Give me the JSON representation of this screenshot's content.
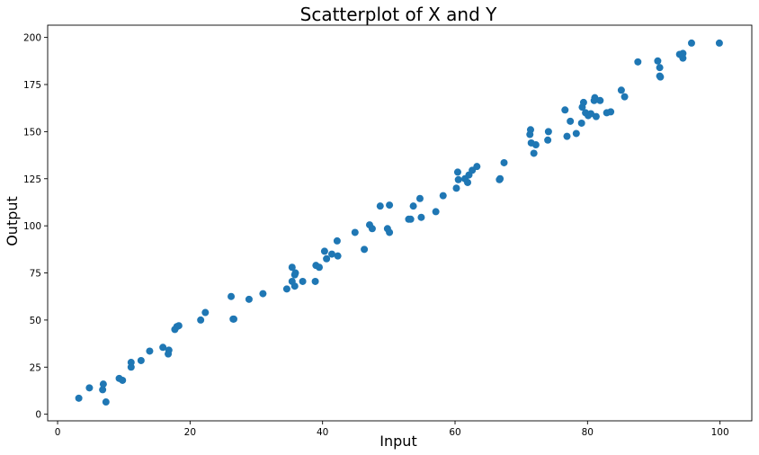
{
  "chart_data": {
    "type": "scatter",
    "title": "Scatterplot of X and Y",
    "xlabel": "Input",
    "ylabel": "Output",
    "xlim": [
      -1.5,
      104.8
    ],
    "ylim": [
      -3.5,
      206.5
    ],
    "xticks": [
      0,
      20,
      40,
      60,
      80,
      100
    ],
    "yticks": [
      0,
      25,
      50,
      75,
      100,
      125,
      150,
      175,
      200
    ],
    "grid": false,
    "color": "#1f77b4",
    "points": [
      [
        3.2,
        8.5
      ],
      [
        4.8,
        14
      ],
      [
        6.8,
        13
      ],
      [
        6.9,
        16
      ],
      [
        7.3,
        6.5
      ],
      [
        9.3,
        19
      ],
      [
        9.8,
        18
      ],
      [
        11.1,
        25
      ],
      [
        11.1,
        27.5
      ],
      [
        12.6,
        28.5
      ],
      [
        13.9,
        33.5
      ],
      [
        15.9,
        35.5
      ],
      [
        16.7,
        32
      ],
      [
        16.8,
        34
      ],
      [
        17.7,
        45
      ],
      [
        18.0,
        46.5
      ],
      [
        18.3,
        47
      ],
      [
        21.6,
        50
      ],
      [
        22.3,
        54
      ],
      [
        26.2,
        62.5
      ],
      [
        26.5,
        50.5
      ],
      [
        26.6,
        50.5
      ],
      [
        28.9,
        61
      ],
      [
        31.0,
        64
      ],
      [
        34.6,
        66.5
      ],
      [
        35.4,
        78
      ],
      [
        35.4,
        70.5
      ],
      [
        35.8,
        74
      ],
      [
        35.9,
        75
      ],
      [
        35.8,
        68
      ],
      [
        37.0,
        70.5
      ],
      [
        39.0,
        79
      ],
      [
        38.9,
        70.5
      ],
      [
        39.5,
        78
      ],
      [
        40.3,
        86.5
      ],
      [
        40.6,
        82.5
      ],
      [
        41.4,
        85
      ],
      [
        42.2,
        92
      ],
      [
        42.3,
        84
      ],
      [
        44.9,
        96.5
      ],
      [
        46.3,
        87.5
      ],
      [
        47.1,
        100.5
      ],
      [
        47.5,
        98.5
      ],
      [
        48.7,
        110.5
      ],
      [
        49.8,
        98.5
      ],
      [
        50.1,
        96.5
      ],
      [
        50.1,
        111
      ],
      [
        53.0,
        103.5
      ],
      [
        53.3,
        103.5
      ],
      [
        53.7,
        110.5
      ],
      [
        54.7,
        114.5
      ],
      [
        54.9,
        104.5
      ],
      [
        57.1,
        107.5
      ],
      [
        58.2,
        116
      ],
      [
        60.2,
        120
      ],
      [
        60.4,
        128.5
      ],
      [
        60.5,
        124.5
      ],
      [
        61.5,
        125
      ],
      [
        61.9,
        123
      ],
      [
        62.1,
        127
      ],
      [
        62.6,
        129.5
      ],
      [
        63.3,
        131.5
      ],
      [
        66.7,
        124.5
      ],
      [
        66.8,
        125
      ],
      [
        67.4,
        133.5
      ],
      [
        71.3,
        148.5
      ],
      [
        71.4,
        151
      ],
      [
        71.5,
        144
      ],
      [
        71.9,
        138.5
      ],
      [
        72.2,
        143
      ],
      [
        74.0,
        145.5
      ],
      [
        74.1,
        150
      ],
      [
        76.6,
        161.5
      ],
      [
        76.9,
        147.5
      ],
      [
        77.4,
        155.5
      ],
      [
        78.3,
        149
      ],
      [
        79.1,
        154.5
      ],
      [
        79.2,
        163
      ],
      [
        79.4,
        165.5
      ],
      [
        79.7,
        160
      ],
      [
        80.1,
        158.5
      ],
      [
        80.5,
        159.5
      ],
      [
        81.0,
        166.5
      ],
      [
        81.1,
        168
      ],
      [
        81.3,
        158
      ],
      [
        81.9,
        166.5
      ],
      [
        82.9,
        160
      ],
      [
        83.5,
        160.5
      ],
      [
        85.1,
        172
      ],
      [
        85.6,
        168.5
      ],
      [
        87.6,
        187
      ],
      [
        90.6,
        187.5
      ],
      [
        90.9,
        184
      ],
      [
        90.9,
        179.5
      ],
      [
        91.0,
        179
      ],
      [
        93.9,
        191
      ],
      [
        94.4,
        189
      ],
      [
        94.4,
        191.5
      ],
      [
        95.7,
        197
      ],
      [
        99.9,
        197
      ]
    ]
  }
}
